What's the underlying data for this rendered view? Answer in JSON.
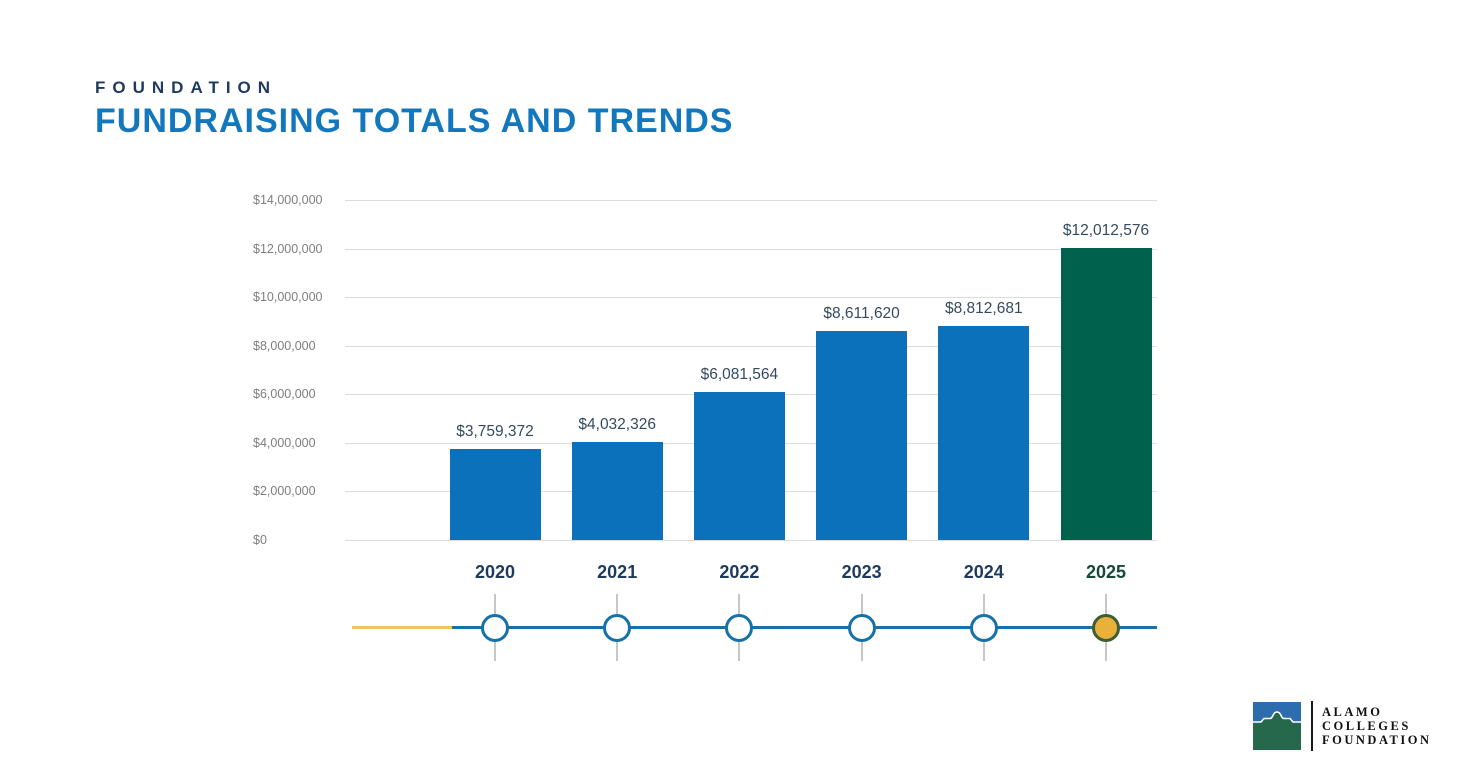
{
  "slide": {
    "eyebrow": "FOUNDATION",
    "title": "FUNDRAISING TOTALS AND TRENDS"
  },
  "chart_data": {
    "type": "bar",
    "categories": [
      "2020",
      "2021",
      "2022",
      "2023",
      "2024",
      "2025"
    ],
    "values": [
      3759372,
      4032326,
      6081564,
      8611620,
      8812681,
      12012576
    ],
    "value_labels": [
      "$3,759,372",
      "$4,032,326",
      "$6,081,564",
      "$8,611,620",
      "$8,812,681",
      "$12,012,576"
    ],
    "title": "Fundraising Totals and Trends",
    "xlabel": "",
    "ylabel": "",
    "ylim": [
      0,
      14000000
    ],
    "y_tick_values": [
      0,
      2000000,
      4000000,
      6000000,
      8000000,
      10000000,
      12000000,
      14000000
    ],
    "y_tick_labels": [
      "$0",
      "$2,000,000",
      "$4,000,000",
      "$6,000,000",
      "$8,000,000",
      "$10,000,000",
      "$12,000,000",
      "$14,000,000"
    ],
    "grid": true,
    "legend": false,
    "bar_color": "#0a71ba",
    "highlight_color": "#00614d",
    "highlight_index": 5
  },
  "timeline": {
    "years": [
      "2020",
      "2021",
      "2022",
      "2023",
      "2024",
      "2025"
    ],
    "node_color": "#ffffff",
    "node_border_color": "#1672a6",
    "highlight_index": 5,
    "highlight_fill": "#e9b13b",
    "highlight_border": "#3e5f33",
    "line_color": "#1672a6",
    "tail_color": "#e9c85f"
  },
  "logo": {
    "lines": [
      "ALAMO",
      "COLLEGES",
      "FOUNDATION"
    ],
    "mark_blue": "#2e6cb0",
    "mark_green": "#25684b"
  },
  "colors": {
    "eyebrow": "#1e3a5f",
    "title": "#1377be",
    "value_label": "#344a5e",
    "axis_label": "#7e7e7e",
    "gridline": "#dcdcdc",
    "year_label": "#1e3a5f",
    "year_label_highlight": "#164a38"
  }
}
